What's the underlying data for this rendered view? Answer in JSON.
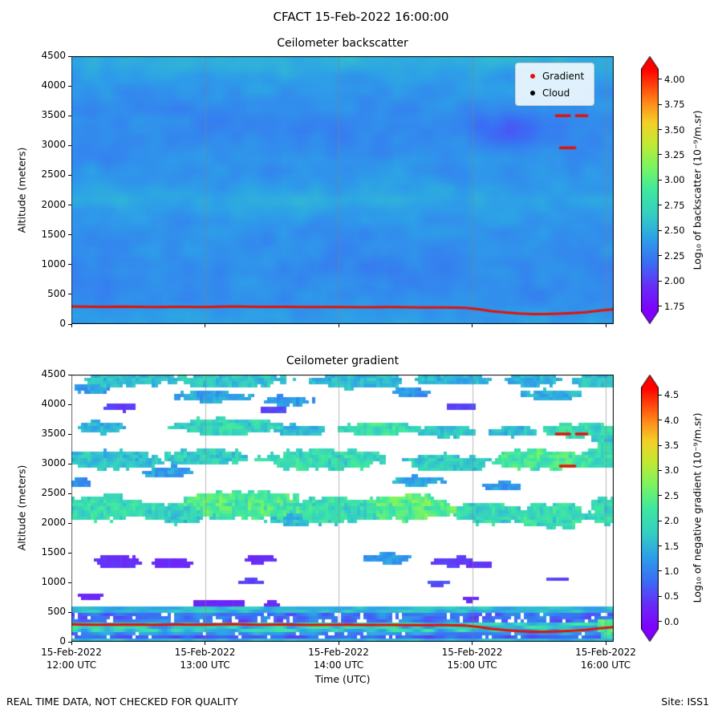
{
  "figure": {
    "title": "CFACT 15-Feb-2022 16:00:00",
    "footer_left": "REAL TIME DATA, NOT CHECKED FOR QUALITY",
    "footer_right": "Site: ISS1"
  },
  "axes": {
    "xlabel": "Time (UTC)",
    "ylabel": "Altitude (meters)",
    "x_range_hours": [
      12,
      16.06
    ],
    "y_range_m": [
      0,
      4500
    ],
    "x_tick_hours": [
      12,
      13,
      14,
      15,
      16
    ],
    "x_tick_labels": [
      [
        "15-Feb-2022",
        "12:00 UTC"
      ],
      [
        "15-Feb-2022",
        "13:00 UTC"
      ],
      [
        "15-Feb-2022",
        "14:00 UTC"
      ],
      [
        "15-Feb-2022",
        "15:00 UTC"
      ],
      [
        "15-Feb-2022",
        "16:00 UTC"
      ]
    ],
    "y_ticks": [
      0,
      500,
      1000,
      1500,
      2000,
      2500,
      3000,
      3500,
      4000,
      4500
    ],
    "gridline_hours": [
      13,
      14,
      15,
      16
    ],
    "gridline_color": "rgba(130,130,130,0.55)"
  },
  "colormap_stops": [
    [
      0,
      "#8000ff"
    ],
    [
      0.1,
      "#6a2bf7"
    ],
    [
      0.2,
      "#3b6ef5"
    ],
    [
      0.3,
      "#2da0e8"
    ],
    [
      0.4,
      "#35cfc3"
    ],
    [
      0.5,
      "#3fe8a0"
    ],
    [
      0.6,
      "#7df55f"
    ],
    [
      0.7,
      "#c8e832"
    ],
    [
      0.78,
      "#f5d028"
    ],
    [
      0.86,
      "#ff8c1a"
    ],
    [
      1,
      "#ff0000"
    ]
  ],
  "chart_data": [
    {
      "type": "heatmap",
      "title": "Ceilometer backscatter",
      "x_unit": "hours UTC",
      "y_unit": "meters",
      "colorbar": {
        "label": "Log₁₀ of backscatter (10⁻⁹/m.sr)",
        "ticks": [
          1.75,
          2.0,
          2.25,
          2.5,
          2.75,
          3.0,
          3.25,
          3.5,
          3.75,
          4.0
        ],
        "tick_decimals": 2,
        "vmin": 1.7,
        "vmax": 4.1,
        "extend": "both"
      },
      "legend": [
        {
          "label": "Gradient",
          "color": "#e01408"
        },
        {
          "label": "Cloud",
          "color": "#000000"
        }
      ],
      "background_profile_alt_vs_log10": [
        [
          0,
          2.42
        ],
        [
          250,
          2.38
        ],
        [
          500,
          2.33
        ],
        [
          900,
          2.32
        ],
        [
          1300,
          2.33
        ],
        [
          1800,
          2.38
        ],
        [
          2100,
          2.42
        ],
        [
          2400,
          2.38
        ],
        [
          2800,
          2.34
        ],
        [
          3300,
          2.31
        ],
        [
          3700,
          2.34
        ],
        [
          4000,
          2.39
        ],
        [
          4250,
          2.44
        ],
        [
          4500,
          2.47
        ]
      ],
      "feature_schema": [
        "hour",
        "altitude_m",
        "sigma_hours",
        "sigma_m",
        "delta_log10"
      ],
      "features": [
        [
          15.28,
          3300,
          0.27,
          290,
          -0.18
        ],
        [
          14.0,
          2150,
          1.3,
          260,
          0.06
        ],
        [
          12.6,
          4380,
          0.9,
          160,
          0.06
        ],
        [
          14.7,
          4420,
          0.8,
          140,
          0.06
        ],
        [
          13.4,
          1950,
          0.5,
          200,
          0.05
        ],
        [
          15.9,
          4300,
          0.3,
          200,
          0.05
        ],
        [
          12.2,
          2100,
          0.4,
          200,
          0.05
        ]
      ],
      "gradient_line": {
        "color": "#e01408",
        "point_schema": [
          "hour",
          "altitude_m"
        ],
        "points": [
          [
            12.0,
            295
          ],
          [
            12.2,
            288
          ],
          [
            12.4,
            292
          ],
          [
            12.6,
            286
          ],
          [
            12.8,
            290
          ],
          [
            13.0,
            287
          ],
          [
            13.2,
            296
          ],
          [
            13.4,
            288
          ],
          [
            13.6,
            290
          ],
          [
            13.8,
            285
          ],
          [
            14.0,
            287
          ],
          [
            14.2,
            283
          ],
          [
            14.4,
            285
          ],
          [
            14.6,
            281
          ],
          [
            14.8,
            280
          ],
          [
            14.95,
            272
          ],
          [
            15.05,
            250
          ],
          [
            15.15,
            215
          ],
          [
            15.25,
            195
          ],
          [
            15.35,
            178
          ],
          [
            15.45,
            170
          ],
          [
            15.55,
            168
          ],
          [
            15.65,
            175
          ],
          [
            15.75,
            185
          ],
          [
            15.85,
            198
          ],
          [
            15.95,
            225
          ],
          [
            16.06,
            248
          ]
        ]
      },
      "aloft_marks": {
        "color": "#e01408",
        "segment_schema": [
          "hour_start",
          "hour_end",
          "altitude_m"
        ],
        "segments": [
          [
            15.63,
            15.73,
            3500
          ],
          [
            15.78,
            15.86,
            3500
          ],
          [
            15.66,
            15.77,
            2960
          ]
        ]
      }
    },
    {
      "type": "heatmap",
      "title": "Ceilometer gradient",
      "x_unit": "hours UTC",
      "y_unit": "meters",
      "no_data_color": "#ffffff",
      "colorbar": {
        "label": "Log₁₀ of negative gradient (10⁻⁹/m.sr)",
        "ticks": [
          0.0,
          0.5,
          1.0,
          1.5,
          2.0,
          2.5,
          3.0,
          3.5,
          4.0,
          4.5
        ],
        "tick_decimals": 1,
        "vmin": -0.15,
        "vmax": 4.65,
        "extend": "both"
      },
      "layer_schema": [
        "alt_lo_m",
        "alt_hi_m",
        "value_log10",
        "variability",
        "dropout_fraction"
      ],
      "surface_layers": [
        [
          470,
          600,
          1.55,
          0.35,
          0
        ],
        [
          300,
          470,
          0.85,
          0.5,
          0.3
        ],
        [
          180,
          300,
          1.7,
          0.7,
          0
        ],
        [
          100,
          180,
          1.1,
          0.4,
          0.1
        ],
        [
          45,
          100,
          0.7,
          0.3,
          0.15
        ],
        [
          5,
          40,
          1.5,
          0.3,
          0
        ]
      ],
      "blob_schema": [
        "hour",
        "altitude_m",
        "sigma_hours",
        "sigma_m",
        "value_log10"
      ],
      "blobs": [
        [
          12.45,
          4420,
          0.33,
          110,
          1.5
        ],
        [
          13.2,
          4410,
          0.42,
          130,
          1.6
        ],
        [
          14.15,
          4390,
          0.33,
          120,
          1.5
        ],
        [
          14.85,
          4430,
          0.28,
          100,
          1.45
        ],
        [
          15.45,
          4400,
          0.22,
          95,
          1.4
        ],
        [
          15.95,
          4390,
          0.18,
          110,
          1.5
        ],
        [
          12.15,
          4260,
          0.14,
          80,
          1.2
        ],
        [
          13.05,
          4130,
          0.28,
          95,
          1.3
        ],
        [
          13.62,
          4060,
          0.18,
          85,
          1.2
        ],
        [
          15.6,
          4160,
          0.22,
          85,
          1.4
        ],
        [
          14.55,
          4200,
          0.15,
          70,
          1.1
        ],
        [
          12.35,
          3950,
          0.12,
          65,
          0.45
        ],
        [
          13.5,
          3900,
          0.1,
          60,
          0.5
        ],
        [
          14.92,
          3960,
          0.11,
          60,
          0.5
        ],
        [
          12.2,
          3610,
          0.18,
          100,
          1.4
        ],
        [
          13.15,
          3630,
          0.38,
          130,
          1.8
        ],
        [
          13.7,
          3560,
          0.18,
          95,
          1.5
        ],
        [
          14.3,
          3570,
          0.28,
          110,
          2.0
        ],
        [
          14.8,
          3530,
          0.22,
          100,
          1.6
        ],
        [
          15.3,
          3540,
          0.18,
          95,
          1.5
        ],
        [
          15.8,
          3560,
          0.28,
          120,
          1.9
        ],
        [
          16.0,
          3470,
          0.1,
          140,
          1.7
        ],
        [
          12.3,
          3060,
          0.38,
          150,
          1.6
        ],
        [
          13.0,
          3110,
          0.32,
          140,
          1.7
        ],
        [
          13.9,
          3060,
          0.45,
          170,
          1.9
        ],
        [
          14.8,
          3010,
          0.32,
          140,
          1.7
        ],
        [
          15.5,
          3060,
          0.38,
          160,
          2.1
        ],
        [
          15.97,
          3110,
          0.14,
          190,
          1.8
        ],
        [
          12.72,
          2860,
          0.18,
          90,
          1.2
        ],
        [
          14.6,
          2710,
          0.18,
          85,
          1.3
        ],
        [
          12.08,
          2660,
          0.1,
          75,
          1.0
        ],
        [
          15.2,
          2610,
          0.14,
          75,
          1.2
        ],
        [
          12.25,
          2260,
          0.32,
          200,
          1.9
        ],
        [
          12.8,
          2160,
          0.28,
          170,
          1.7
        ],
        [
          13.3,
          2310,
          0.42,
          230,
          2.2
        ],
        [
          14.0,
          2210,
          0.38,
          200,
          1.9
        ],
        [
          14.55,
          2260,
          0.32,
          210,
          2.3
        ],
        [
          15.1,
          2160,
          0.28,
          170,
          1.8
        ],
        [
          15.6,
          2110,
          0.28,
          185,
          1.9
        ],
        [
          16.0,
          2210,
          0.11,
          230,
          1.8
        ],
        [
          13.7,
          2060,
          0.22,
          110,
          1.5
        ],
        [
          12.35,
          1360,
          0.18,
          95,
          0.35
        ],
        [
          12.75,
          1330,
          0.14,
          85,
          0.3
        ],
        [
          13.4,
          1390,
          0.11,
          75,
          0.35
        ],
        [
          14.35,
          1410,
          0.18,
          95,
          1.15
        ],
        [
          14.85,
          1360,
          0.14,
          85,
          0.45
        ],
        [
          15.05,
          1300,
          0.09,
          65,
          0.35
        ],
        [
          13.35,
          1010,
          0.09,
          55,
          0.5
        ],
        [
          14.75,
          990,
          0.09,
          55,
          0.6
        ],
        [
          15.65,
          1060,
          0.08,
          50,
          0.5
        ],
        [
          12.15,
          770,
          0.09,
          55,
          0.3
        ],
        [
          15.0,
          730,
          0.08,
          50,
          0.3
        ],
        [
          13.1,
          650,
          0.22,
          60,
          0.25
        ],
        [
          13.5,
          640,
          0.1,
          45,
          0.3
        ],
        [
          16.0,
          260,
          0.07,
          120,
          2.2
        ],
        [
          16.02,
          120,
          0.05,
          80,
          1.8
        ]
      ],
      "gradient_line": {
        "color": "#e01408",
        "point_schema": [
          "hour",
          "altitude_m"
        ],
        "points": [
          [
            12.0,
            295
          ],
          [
            12.2,
            288
          ],
          [
            12.4,
            292
          ],
          [
            12.6,
            286
          ],
          [
            12.8,
            290
          ],
          [
            13.0,
            287
          ],
          [
            13.2,
            296
          ],
          [
            13.4,
            288
          ],
          [
            13.6,
            290
          ],
          [
            13.8,
            285
          ],
          [
            14.0,
            287
          ],
          [
            14.2,
            283
          ],
          [
            14.4,
            285
          ],
          [
            14.6,
            281
          ],
          [
            14.8,
            280
          ],
          [
            14.95,
            272
          ],
          [
            15.05,
            250
          ],
          [
            15.15,
            215
          ],
          [
            15.25,
            195
          ],
          [
            15.35,
            178
          ],
          [
            15.45,
            170
          ],
          [
            15.55,
            168
          ],
          [
            15.65,
            175
          ],
          [
            15.75,
            185
          ],
          [
            15.85,
            198
          ],
          [
            15.95,
            225
          ],
          [
            16.06,
            248
          ]
        ]
      },
      "aloft_marks": {
        "color": "#e01408",
        "segment_schema": [
          "hour_start",
          "hour_end",
          "altitude_m"
        ],
        "segments": [
          [
            15.63,
            15.73,
            3500
          ],
          [
            15.78,
            15.86,
            3500
          ],
          [
            15.66,
            15.77,
            2960
          ]
        ]
      }
    }
  ]
}
